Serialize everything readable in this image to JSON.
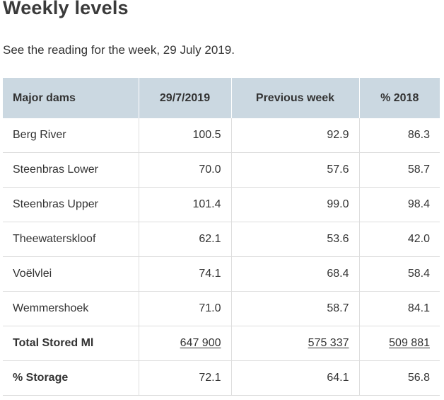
{
  "page": {
    "title": "Weekly levels",
    "intro": "See the reading for the week, 29 July 2019."
  },
  "table": {
    "headers": [
      "Major dams",
      "29/7/2019",
      "Previous week",
      "% 2018"
    ],
    "rows": [
      {
        "name": "Berg River",
        "current": "100.5",
        "previous": "92.9",
        "pct2018": "86.3"
      },
      {
        "name": "Steenbras Lower",
        "current": "70.0",
        "previous": "57.6",
        "pct2018": "58.7"
      },
      {
        "name": "Steenbras Upper",
        "current": "101.4",
        "previous": "99.0",
        "pct2018": "98.4"
      },
      {
        "name": "Theewaterskloof",
        "current": "62.1",
        "previous": "53.6",
        "pct2018": "42.0"
      },
      {
        "name": "Voëlvlei",
        "current": "74.1",
        "previous": "68.4",
        "pct2018": "58.4"
      },
      {
        "name": "Wemmershoek",
        "current": "71.0",
        "previous": "58.7",
        "pct2018": "84.1"
      }
    ],
    "total": {
      "name": "Total Stored Ml",
      "current": "647 900",
      "previous": "575 337",
      "pct2018": "509 881"
    },
    "storage": {
      "name": "% Storage",
      "current": "72.1",
      "previous": "64.1",
      "pct2018": "56.8"
    }
  }
}
